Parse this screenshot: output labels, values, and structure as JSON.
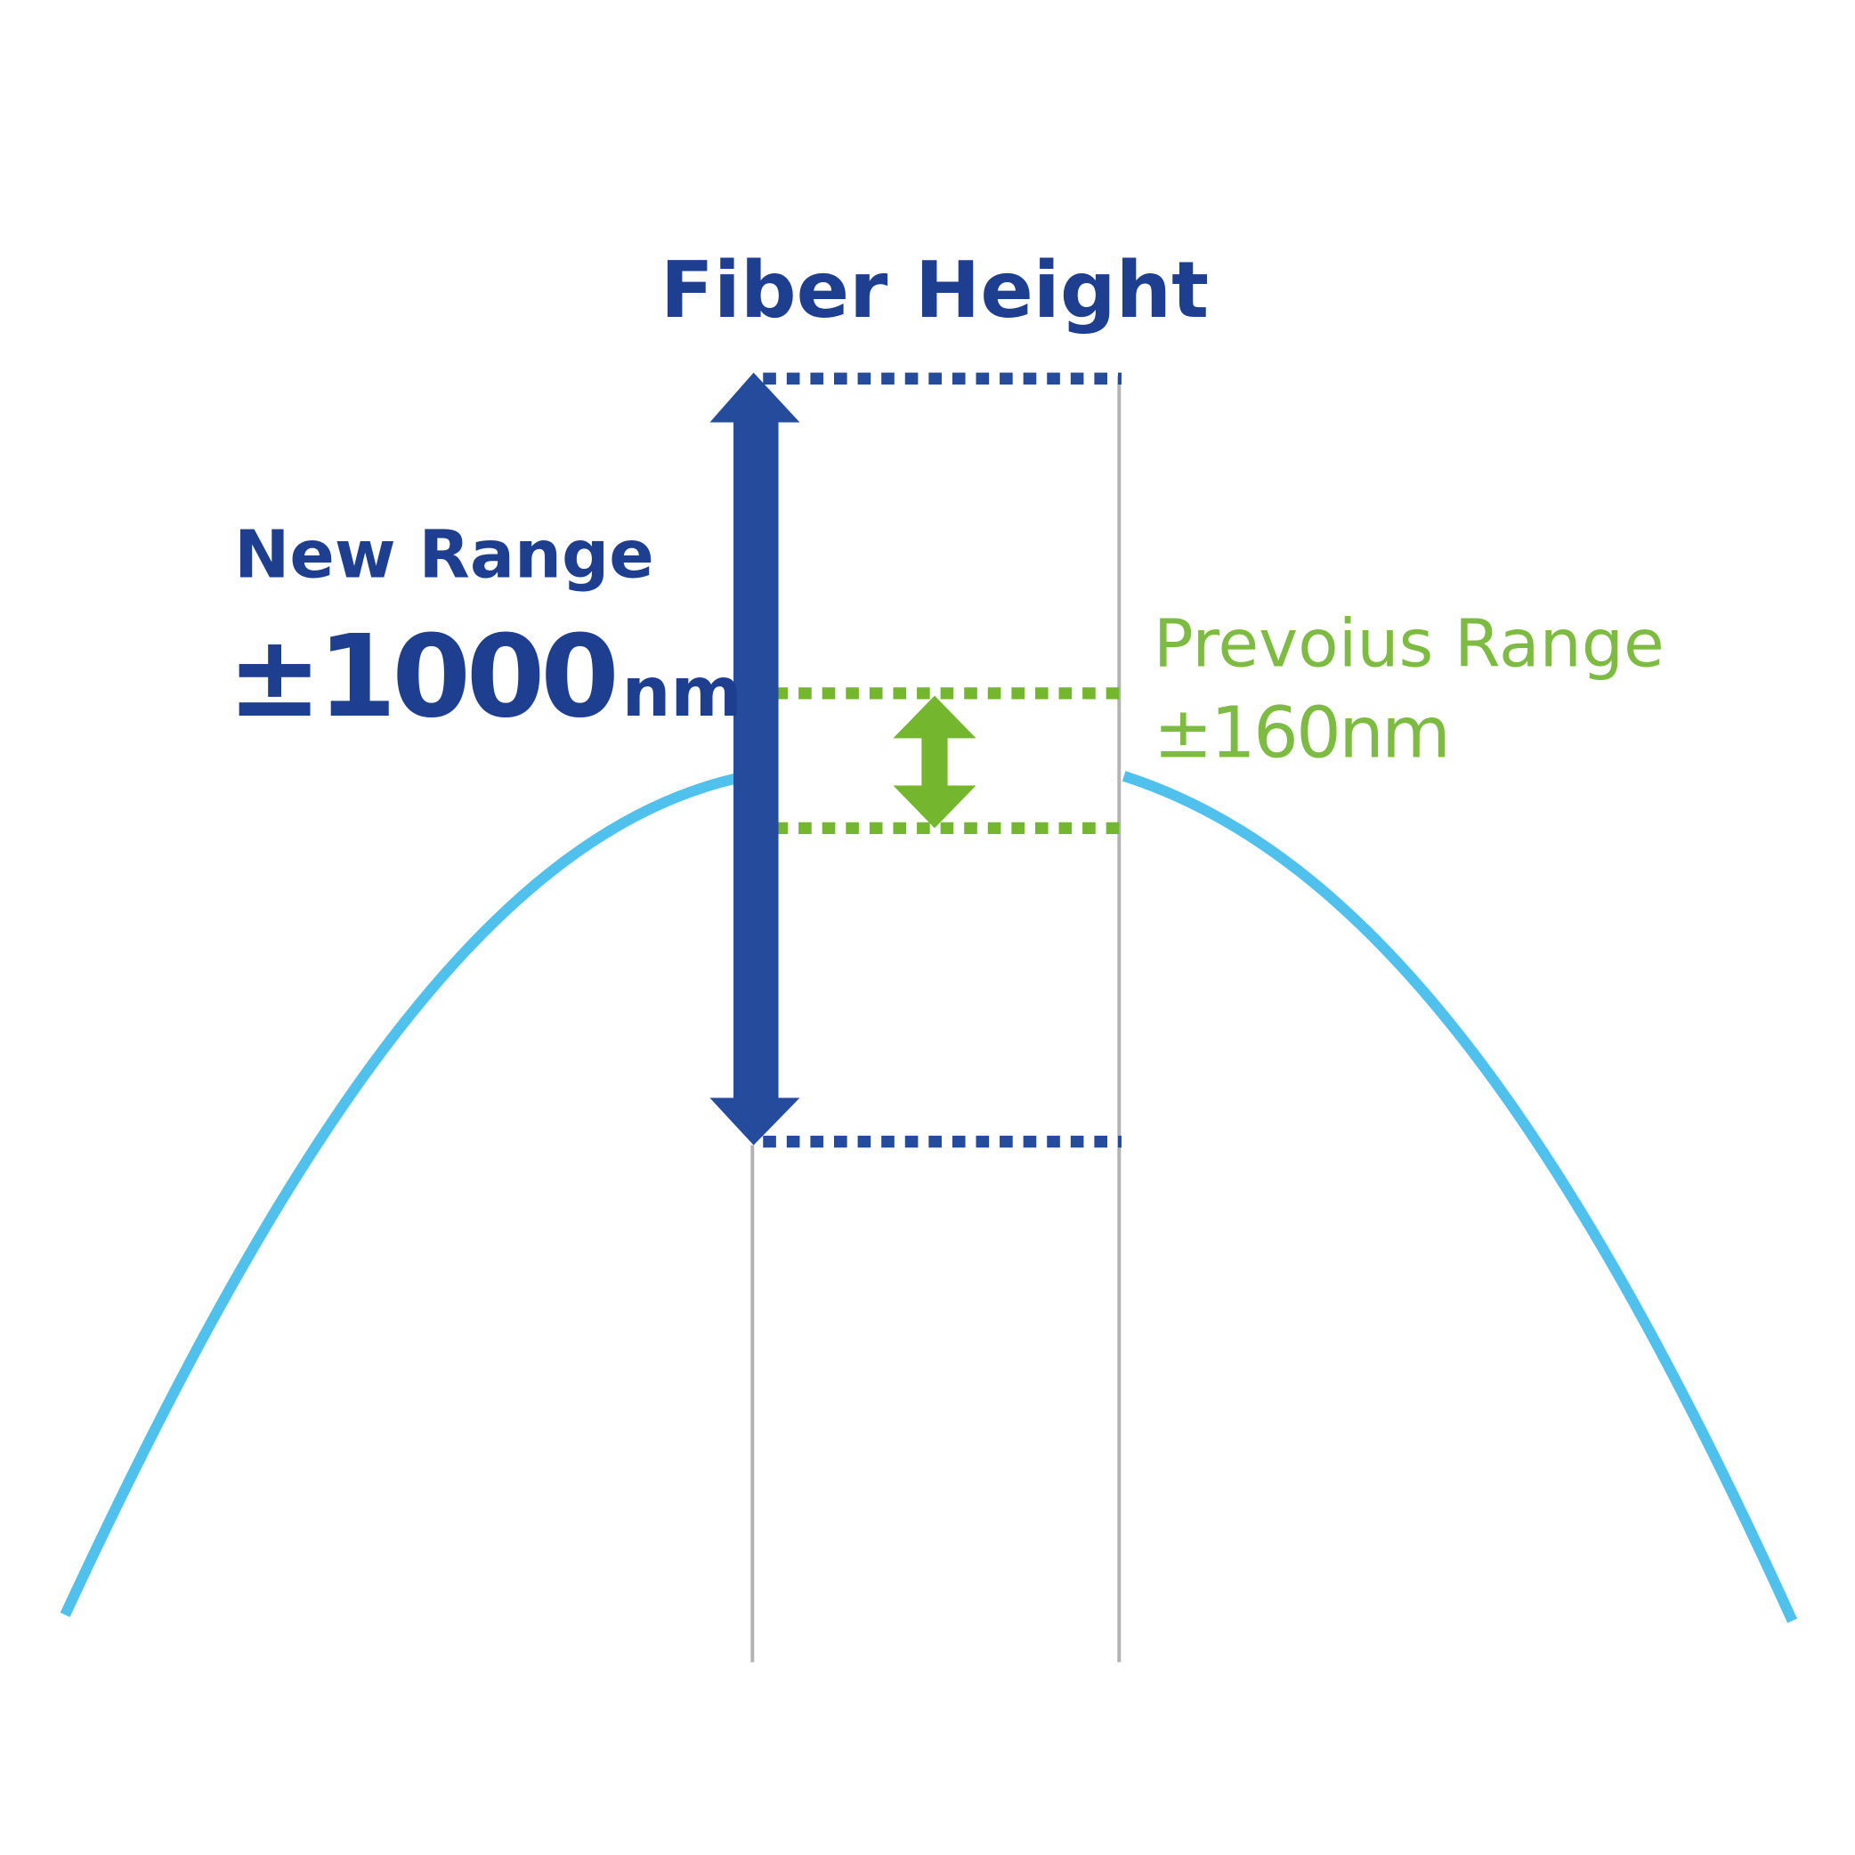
{
  "title": "Fiber Height",
  "new_range": {
    "label": "New Range",
    "value": "±1000",
    "unit": "nm"
  },
  "previous_range": {
    "label": "Prevoius Range",
    "value": "±160nm"
  },
  "colors": {
    "new": "#244b9c",
    "previous": "#74b62e",
    "curve": "#4fc1ec",
    "guide": "#b3b3b3"
  }
}
